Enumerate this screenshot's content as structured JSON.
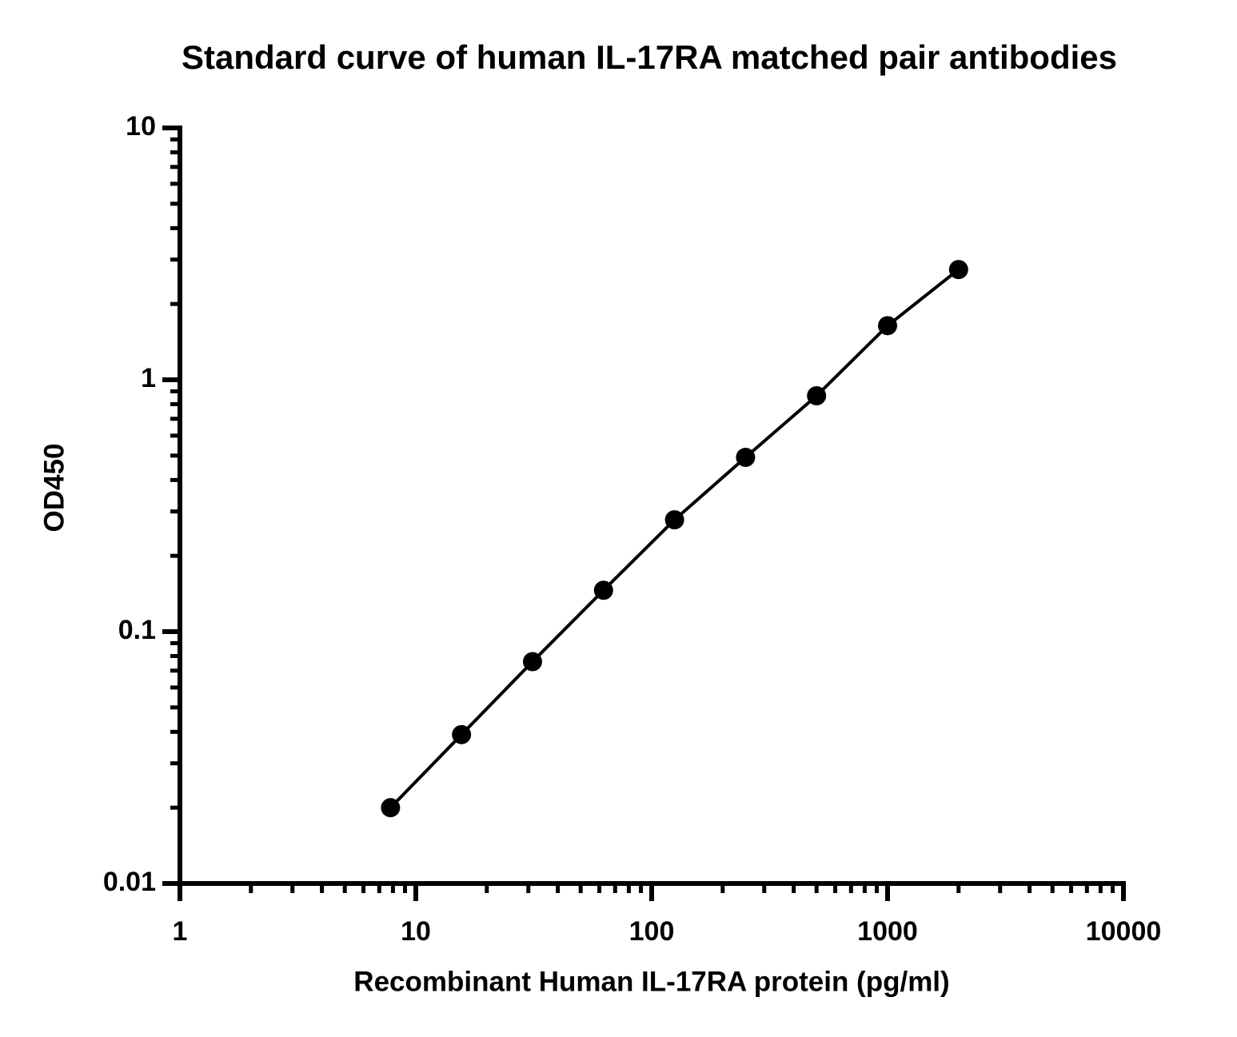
{
  "chart_data": {
    "type": "line",
    "title": "Standard curve of human IL-17RA matched pair antibodies",
    "x_label": "Recombinant Human IL-17RA protein (pg/ml)",
    "y_label": "OD450",
    "x": [
      7.8125,
      15.625,
      31.25,
      62.5,
      125,
      250,
      500,
      1000,
      2000
    ],
    "series": [
      {
        "color": "#000000",
        "values": [
          0.02,
          0.039,
          0.076,
          0.146,
          0.278,
          0.492,
          0.864,
          1.64,
          2.74
        ]
      }
    ],
    "xlim": [
      1,
      10000
    ],
    "ylim": [
      0.01,
      10
    ],
    "xticks": [
      1,
      10,
      100,
      1000,
      10000
    ],
    "yticks": [
      0.01,
      0.1,
      1,
      10
    ],
    "x_log": true,
    "y_log": true,
    "grid": false,
    "markers": true
  }
}
